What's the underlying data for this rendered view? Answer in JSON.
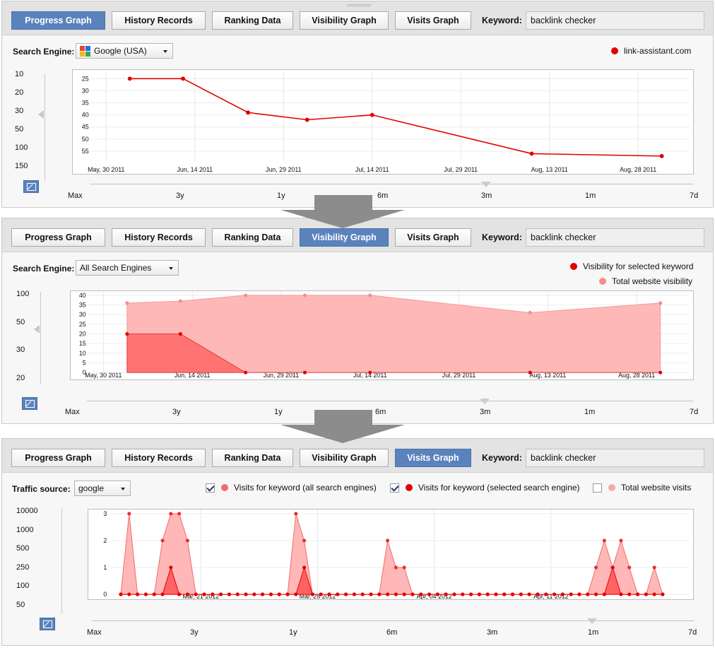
{
  "tabs": [
    {
      "key": "progress",
      "label": "Progress Graph"
    },
    {
      "key": "history",
      "label": "History Records"
    },
    {
      "key": "ranking",
      "label": "Ranking Data"
    },
    {
      "key": "visibility",
      "label": "Visibility Graph"
    },
    {
      "key": "visits",
      "label": "Visits Graph"
    }
  ],
  "keyword_label": "Keyword:",
  "keyword_value": "backlink checker",
  "range_labels": [
    "Max",
    "3y",
    "1y",
    "6m",
    "3m",
    "1m",
    "7d"
  ],
  "panel1": {
    "active_tab": "progress",
    "engine_label": "Search Engine:",
    "engine_value": "Google (USA)",
    "legend": [
      {
        "label": "link-assistant.com",
        "color": "#e10000"
      }
    ],
    "scale_labels": [
      "10",
      "20",
      "30",
      "50",
      "100",
      "150"
    ],
    "range_selected": "3m"
  },
  "panel2": {
    "active_tab": "visibility",
    "engine_label": "Search Engine:",
    "engine_value": "All Search Engines",
    "legend": [
      {
        "label": "Visibility for selected keyword",
        "color": "#e10000"
      },
      {
        "label": "Total website visibility",
        "color": "#f58c8c"
      }
    ],
    "scale_labels": [
      "100",
      "50",
      "30",
      "20"
    ],
    "range_selected": "3m"
  },
  "panel3": {
    "active_tab": "visits",
    "source_label": "Traffic source:",
    "source_value": "google",
    "legend": [
      {
        "label": "Visits for keyword (all search engines)",
        "color": "#f06a6a",
        "checked": true
      },
      {
        "label": "Visits for keyword (selected search engine)",
        "color": "#e10000",
        "checked": true
      },
      {
        "label": "Total website visits",
        "color": "#f7a9a9",
        "checked": false
      }
    ],
    "scale_labels": [
      "10000",
      "1000",
      "500",
      "250",
      "100",
      "50"
    ],
    "range_selected": "1m"
  },
  "chart_data": [
    {
      "type": "line",
      "x_ticks": [
        "May, 30 2011",
        "Jun, 14 2011",
        "Jun, 29 2011",
        "Jul, 14 2011",
        "Jul, 29 2011",
        "Aug, 13 2011",
        "Aug, 28 2011"
      ],
      "y_ticks": [
        25,
        30,
        35,
        40,
        45,
        50,
        55
      ],
      "ylim": [
        24,
        58
      ],
      "y_inverted": true,
      "grid": true,
      "series": [
        {
          "name": "link-assistant.com",
          "color": "#e10000",
          "x": [
            "2011-06-03",
            "2011-06-12",
            "2011-06-23",
            "2011-07-03",
            "2011-07-14",
            "2011-08-10",
            "2011-09-01"
          ],
          "values": [
            25,
            25,
            39,
            42,
            40,
            56,
            57
          ]
        }
      ]
    },
    {
      "type": "area",
      "x_ticks": [
        "May, 30 2011",
        "Jun, 14 2011",
        "Jun, 29 2011",
        "Jul, 14 2011",
        "Jul, 29 2011",
        "Aug, 13 2011",
        "Aug, 28 2011"
      ],
      "y_ticks": [
        0,
        5,
        10,
        15,
        20,
        25,
        30,
        35,
        40
      ],
      "ylim": [
        0,
        40
      ],
      "grid": true,
      "series": [
        {
          "name": "Total website visibility",
          "color": "#f58c8c",
          "x": [
            "2011-06-03",
            "2011-06-12",
            "2011-06-23",
            "2011-07-03",
            "2011-07-14",
            "2011-08-10",
            "2011-09-01"
          ],
          "values": [
            36,
            37,
            40,
            40,
            40,
            31,
            36
          ]
        },
        {
          "name": "Visibility for selected keyword",
          "color": "#e10000",
          "x": [
            "2011-06-03",
            "2011-06-12",
            "2011-06-23",
            "2011-07-03",
            "2011-07-14",
            "2011-08-10",
            "2011-09-01"
          ],
          "values": [
            20,
            20,
            0,
            0,
            0,
            0,
            0
          ]
        }
      ]
    },
    {
      "type": "area",
      "x_ticks": [
        "Mar, 21 2012",
        "Mar, 28 2012",
        "Apr, 04 2012",
        "Apr, 11 2012"
      ],
      "x_tick_days": [
        4,
        11,
        18,
        25
      ],
      "y_ticks": [
        0,
        1,
        2,
        3
      ],
      "ylim": [
        0,
        3
      ],
      "grid": true,
      "x_day_labels": [
        "2012-03-17",
        "2012-04-16"
      ],
      "series": [
        {
          "name": "Visits for keyword (all search engines)",
          "color": "#f06a6a",
          "values": [
            0,
            3,
            0,
            0,
            0,
            2,
            3,
            3,
            2,
            0,
            0,
            0,
            0,
            0,
            0,
            0,
            0,
            0,
            0,
            0,
            0,
            3,
            2,
            0,
            0,
            0,
            0,
            0,
            0,
            0,
            0,
            0,
            2,
            1,
            1,
            0,
            0,
            0,
            0,
            0,
            0,
            0,
            0,
            0,
            0,
            0,
            0,
            0,
            0,
            0,
            0,
            0,
            0,
            0,
            0,
            0,
            0,
            1,
            2,
            1,
            2,
            1,
            0,
            0,
            1,
            0
          ]
        },
        {
          "name": "Visits for keyword (selected search engine)",
          "color": "#e10000",
          "values": [
            0,
            0,
            0,
            0,
            0,
            0,
            1,
            0,
            0,
            0,
            0,
            0,
            0,
            0,
            0,
            0,
            0,
            0,
            0,
            0,
            0,
            0,
            1,
            0,
            0,
            0,
            0,
            0,
            0,
            0,
            0,
            0,
            0,
            0,
            0,
            0,
            0,
            0,
            0,
            0,
            0,
            0,
            0,
            0,
            0,
            0,
            0,
            0,
            0,
            0,
            0,
            0,
            0,
            0,
            0,
            0,
            0,
            0,
            0,
            1,
            0,
            0,
            0,
            0,
            0,
            0
          ]
        }
      ]
    }
  ]
}
